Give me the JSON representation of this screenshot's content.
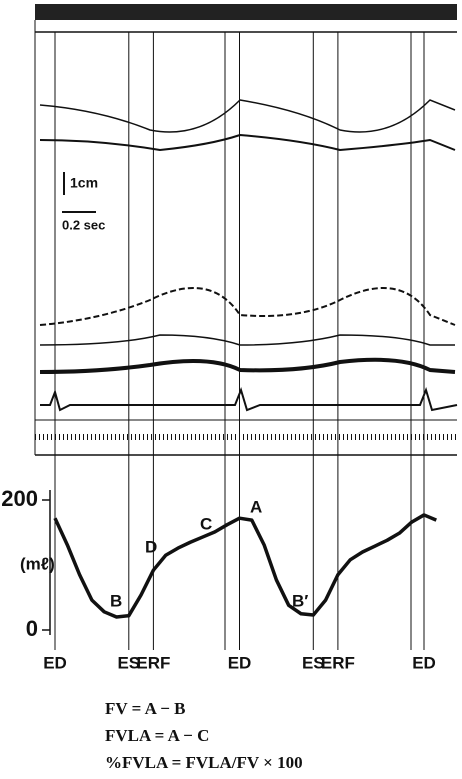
{
  "scale_labels": {
    "distance": "1cm",
    "time": "0.2 sec"
  },
  "chart_data": {
    "type": "line",
    "ylabel": "(mℓ)",
    "categories": [
      "ED",
      null,
      null,
      null,
      null,
      null,
      "ES",
      null,
      "ERF",
      null,
      null,
      null,
      null,
      null,
      null,
      "ED",
      null,
      null,
      null,
      null,
      null,
      "ES",
      null,
      "ERF",
      null,
      null,
      null,
      null,
      null,
      null,
      "ED",
      null
    ],
    "values": [
      172,
      131,
      85,
      46,
      28,
      20,
      22,
      54,
      92,
      115,
      126,
      135,
      143,
      151,
      162,
      172,
      169,
      131,
      77,
      38,
      25,
      23,
      46,
      85,
      108,
      120,
      129,
      138,
      149,
      166,
      177,
      169
    ],
    "color": "#111111",
    "ylim": [
      0,
      200
    ],
    "yticks": [
      0,
      200
    ],
    "annotations": [
      "A",
      "B",
      "C",
      "D",
      "B′"
    ]
  },
  "formulas": [
    "FV = A − B",
    "FVLA = A − C",
    "%FVLA = FVLA/FV × 100"
  ]
}
